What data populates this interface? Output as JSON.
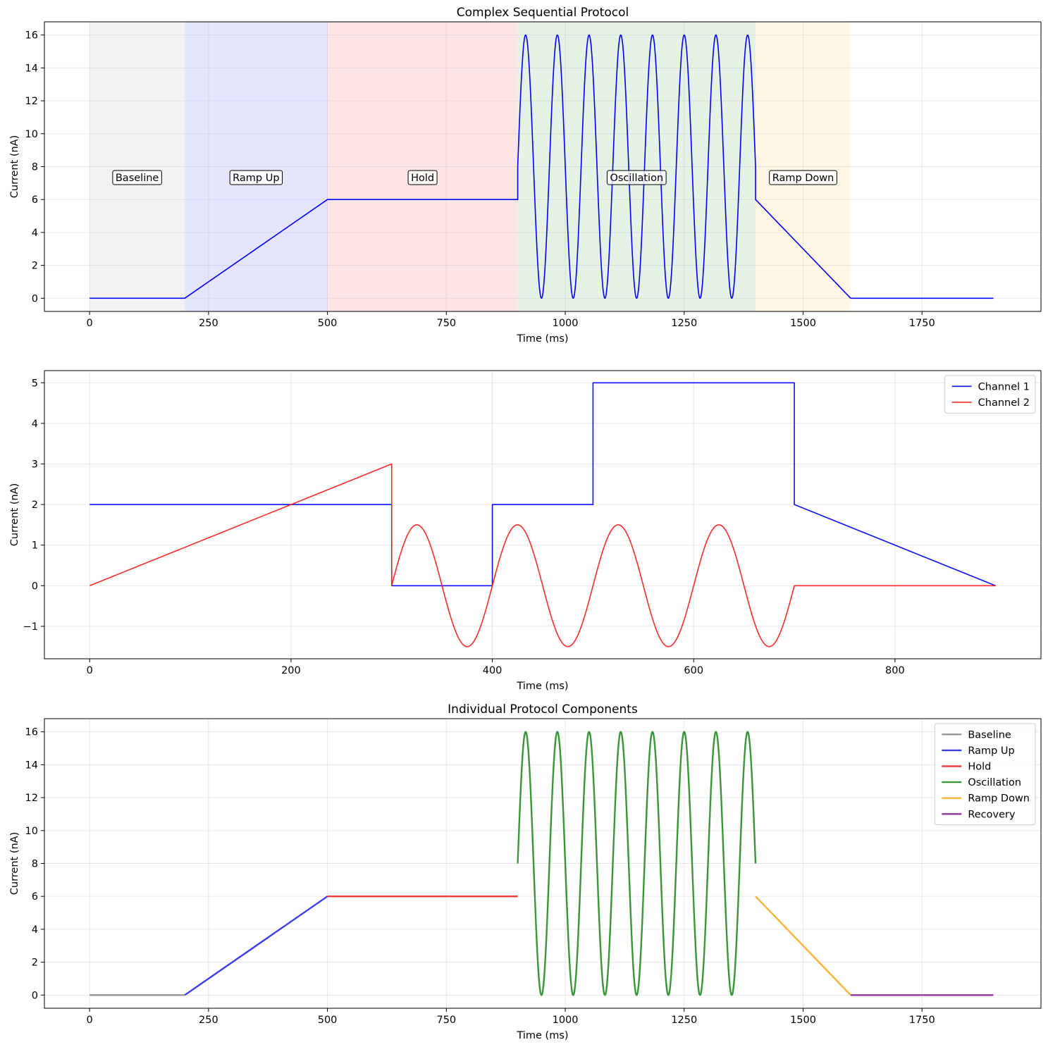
{
  "chart_data": [
    {
      "type": "line",
      "title": "Complex Sequential Protocol",
      "xlabel": "Time (ms)",
      "ylabel": "Current (nA)",
      "xlim": [
        -95,
        2000
      ],
      "ylim": [
        -0.8,
        16.8
      ],
      "xticks": [
        0,
        250,
        500,
        750,
        1000,
        1250,
        1500,
        1750
      ],
      "yticks": [
        0,
        2,
        4,
        6,
        8,
        10,
        12,
        14,
        16
      ],
      "grid": true,
      "legend": null,
      "phases": [
        {
          "name": "Baseline",
          "start": 0,
          "end": 200,
          "color": "#808080"
        },
        {
          "name": "Ramp Up",
          "start": 200,
          "end": 500,
          "color": "#0000ff"
        },
        {
          "name": "Hold",
          "start": 500,
          "end": 900,
          "color": "#ff0000"
        },
        {
          "name": "Oscillation",
          "start": 900,
          "end": 1400,
          "color": "#008000"
        },
        {
          "name": "Ramp Down",
          "start": 1400,
          "end": 1600,
          "color": "#ffa500"
        }
      ],
      "series": [
        {
          "color": "#0000ff",
          "segments": [
            {
              "kind": "const",
              "t0": 0,
              "t1": 200,
              "value": 0
            },
            {
              "kind": "ramp",
              "t0": 200,
              "t1": 500,
              "v0": 0,
              "v1": 6
            },
            {
              "kind": "const",
              "t0": 500,
              "t1": 900,
              "value": 6
            },
            {
              "kind": "sine",
              "t0": 900,
              "t1": 1400,
              "offset": 8,
              "amplitude": 8,
              "frequency_hz": 15,
              "phase": 0
            },
            {
              "kind": "ramp",
              "t0": 1400,
              "t1": 1600,
              "v0": 6,
              "v1": 0
            },
            {
              "kind": "const",
              "t0": 1600,
              "t1": 1900,
              "value": 0
            }
          ]
        }
      ]
    },
    {
      "type": "line",
      "title": "",
      "xlabel": "Time (ms)",
      "ylabel": "Current (nA)",
      "xlim": [
        -45,
        945
      ],
      "ylim": [
        -1.8,
        5.3
      ],
      "xticks": [
        0,
        200,
        400,
        600,
        800
      ],
      "yticks": [
        -1,
        0,
        1,
        2,
        3,
        4,
        5
      ],
      "grid": true,
      "legend": "top-right",
      "series": [
        {
          "name": "Channel 1",
          "color": "#0000ff",
          "segments": [
            {
              "kind": "const",
              "t0": 0,
              "t1": 300,
              "value": 2
            },
            {
              "kind": "const",
              "t0": 300,
              "t1": 400,
              "value": 0
            },
            {
              "kind": "const",
              "t0": 400,
              "t1": 500,
              "value": 2
            },
            {
              "kind": "const",
              "t0": 500,
              "t1": 700,
              "value": 5
            },
            {
              "kind": "ramp",
              "t0": 700,
              "t1": 900,
              "v0": 2,
              "v1": 0
            }
          ]
        },
        {
          "name": "Channel 2",
          "color": "#ff2020",
          "segments": [
            {
              "kind": "ramp",
              "t0": 0,
              "t1": 300,
              "v0": 0,
              "v1": 3
            },
            {
              "kind": "sine",
              "t0": 300,
              "t1": 700,
              "offset": 0,
              "amplitude": 1.5,
              "frequency_hz": 10,
              "phase": 0
            },
            {
              "kind": "const",
              "t0": 700,
              "t1": 900,
              "value": 0
            }
          ]
        }
      ]
    },
    {
      "type": "line",
      "title": "Individual Protocol Components",
      "xlabel": "Time (ms)",
      "ylabel": "Current (nA)",
      "xlim": [
        -95,
        2000
      ],
      "ylim": [
        -0.8,
        16.8
      ],
      "xticks": [
        0,
        250,
        500,
        750,
        1000,
        1250,
        1500,
        1750
      ],
      "yticks": [
        0,
        2,
        4,
        6,
        8,
        10,
        12,
        14,
        16
      ],
      "grid": true,
      "legend": "top-right",
      "series": [
        {
          "name": "Baseline",
          "color": "#909090",
          "segments": [
            {
              "kind": "const",
              "t0": 0,
              "t1": 200,
              "value": 0
            }
          ]
        },
        {
          "name": "Ramp Up",
          "color": "#3333ee",
          "segments": [
            {
              "kind": "ramp",
              "t0": 200,
              "t1": 500,
              "v0": 0,
              "v1": 6
            }
          ]
        },
        {
          "name": "Hold",
          "color": "#ee3333",
          "segments": [
            {
              "kind": "const",
              "t0": 500,
              "t1": 900,
              "value": 6
            }
          ]
        },
        {
          "name": "Oscillation",
          "color": "#2e912e",
          "segments": [
            {
              "kind": "sine",
              "t0": 900,
              "t1": 1400,
              "offset": 8,
              "amplitude": 8,
              "frequency_hz": 15,
              "phase": 0
            }
          ]
        },
        {
          "name": "Ramp Down",
          "color": "#f8b02c",
          "segments": [
            {
              "kind": "ramp",
              "t0": 1400,
              "t1": 1600,
              "v0": 6,
              "v1": 0
            }
          ]
        },
        {
          "name": "Recovery",
          "color": "#8e2a9c",
          "segments": [
            {
              "kind": "const",
              "t0": 1600,
              "t1": 1900,
              "value": 0
            }
          ]
        }
      ]
    }
  ]
}
